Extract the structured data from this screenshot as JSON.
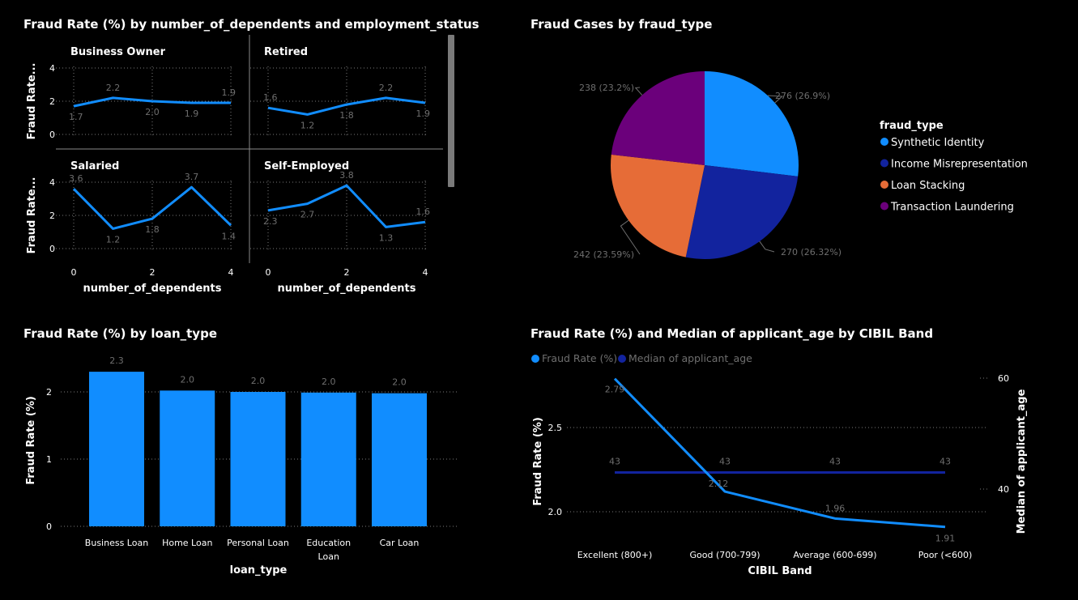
{
  "titles": {
    "small_multiples": "Fraud Rate (%) by number_of_dependents and employment_status",
    "pie": "Fraud Cases by fraud_type",
    "bar": "Fraud Rate (%) by loan_type",
    "combo": "Fraud Rate (%) and Median of applicant_age by CIBIL Band"
  },
  "chart_data": [
    {
      "type": "line",
      "title": "Fraud Rate (%) by number_of_dependents and employment_status",
      "xlabel": "number_of_dependents",
      "ylabel": "Fraud Rate...",
      "x": [
        0,
        1,
        2,
        3,
        4
      ],
      "x_ticks": [
        "0",
        "2",
        "4"
      ],
      "y_ticks": [
        "0",
        "2",
        "4"
      ],
      "ylim": [
        0,
        4
      ],
      "color": "#118DFF",
      "panels": [
        {
          "name": "Business Owner",
          "values": [
            1.7,
            2.2,
            2.0,
            1.9,
            1.9
          ],
          "labels": [
            "1.7",
            "2.2",
            "2.0",
            "1.9",
            "1.9"
          ]
        },
        {
          "name": "Retired",
          "values": [
            1.6,
            1.2,
            1.8,
            2.2,
            1.9
          ],
          "labels": [
            "1.6",
            "1.2",
            "1.8",
            "2.2",
            "1.9"
          ]
        },
        {
          "name": "Salaried",
          "values": [
            3.6,
            1.2,
            1.8,
            3.7,
            1.4
          ],
          "labels": [
            "3.6",
            "1.2",
            "1.8",
            "3.7",
            "1.4"
          ]
        },
        {
          "name": "Self-Employed",
          "values": [
            2.3,
            2.7,
            3.8,
            1.3,
            1.6
          ],
          "labels": [
            "2.3",
            "2.7",
            "3.8",
            "1.3",
            "1.6"
          ]
        }
      ]
    },
    {
      "type": "pie",
      "title": "Fraud Cases by fraud_type",
      "legend_title": "fraud_type",
      "slices": [
        {
          "name": "Synthetic Identity",
          "value": 276,
          "label": "276 (26.9%)",
          "color": "#118DFF"
        },
        {
          "name": "Income Misrepresentation",
          "value": 270,
          "label": "270 (26.32%)",
          "color": "#12239E"
        },
        {
          "name": "Loan Stacking",
          "value": 242,
          "label": "242 (23.59%)",
          "color": "#E66C37"
        },
        {
          "name": "Transaction Laundering",
          "value": 238,
          "label": "238 (23.2%)",
          "color": "#6B007B"
        }
      ]
    },
    {
      "type": "bar",
      "title": "Fraud Rate (%) by loan_type",
      "xlabel": "loan_type",
      "ylabel": "Fraud Rate (%)",
      "categories": [
        "Business Loan",
        "Home Loan",
        "Personal Loan",
        "Education Loan",
        "Car Loan"
      ],
      "values": [
        2.3,
        2.02,
        2.0,
        1.99,
        1.98
      ],
      "labels": [
        "2.3",
        "2.0",
        "2.0",
        "2.0",
        "2.0"
      ],
      "ylim": [
        0,
        2.5
      ],
      "y_ticks": [
        "0",
        "1",
        "2"
      ],
      "color": "#118DFF"
    },
    {
      "type": "line",
      "title": "Fraud Rate (%) and Median of applicant_age by CIBIL Band",
      "xlabel": "CIBIL Band",
      "ylabel": "Fraud Rate (%)",
      "ylabel2": "Median of applicant_age",
      "categories": [
        "Excellent (800+)",
        "Good (700-799)",
        "Average (600-699)",
        "Poor (<600)"
      ],
      "y_ticks": [
        "2.0",
        "2.5"
      ],
      "y2_ticks": [
        "40",
        "60"
      ],
      "series": [
        {
          "name": "Fraud Rate (%)",
          "values": [
            2.79,
            2.12,
            1.96,
            1.91
          ],
          "labels": [
            "2.79",
            "2.12",
            "1.96",
            "1.91"
          ],
          "color": "#118DFF",
          "axis": "left"
        },
        {
          "name": "Median of applicant_age",
          "values": [
            43,
            43,
            43,
            43
          ],
          "labels": [
            "43",
            "43",
            "43",
            "43"
          ],
          "color": "#12239E",
          "axis": "right"
        }
      ]
    }
  ]
}
